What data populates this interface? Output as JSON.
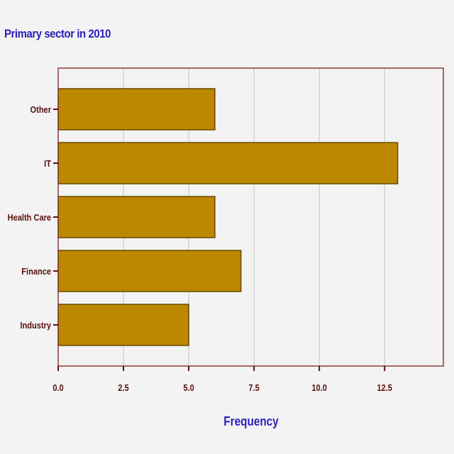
{
  "chart_data": {
    "type": "bar",
    "orientation": "horizontal",
    "title": "Primary sector in 2010",
    "xlabel": "Frequency",
    "ylabel": "",
    "categories": [
      "Other",
      "IT",
      "Health Care",
      "Finance",
      "Industry"
    ],
    "values": [
      6,
      13,
      6,
      7,
      5
    ],
    "xlim": [
      0,
      14.75
    ],
    "xticks": [
      "0.0",
      "2.5",
      "5.0",
      "7.5",
      "10.0",
      "12.5"
    ],
    "xtick_values": [
      0,
      2.5,
      5,
      7.5,
      10,
      12.5
    ],
    "grid": true,
    "legend": "none",
    "colors": {
      "bar_fill": "#bb8800",
      "bar_stroke": "#6b4a00",
      "frame": "#8b3a3a",
      "grid": "#c8c0c0",
      "tick_text": "#5a0f0f",
      "title_text": "#2a1fb8",
      "plot_bg": "#f3f3f3"
    }
  }
}
